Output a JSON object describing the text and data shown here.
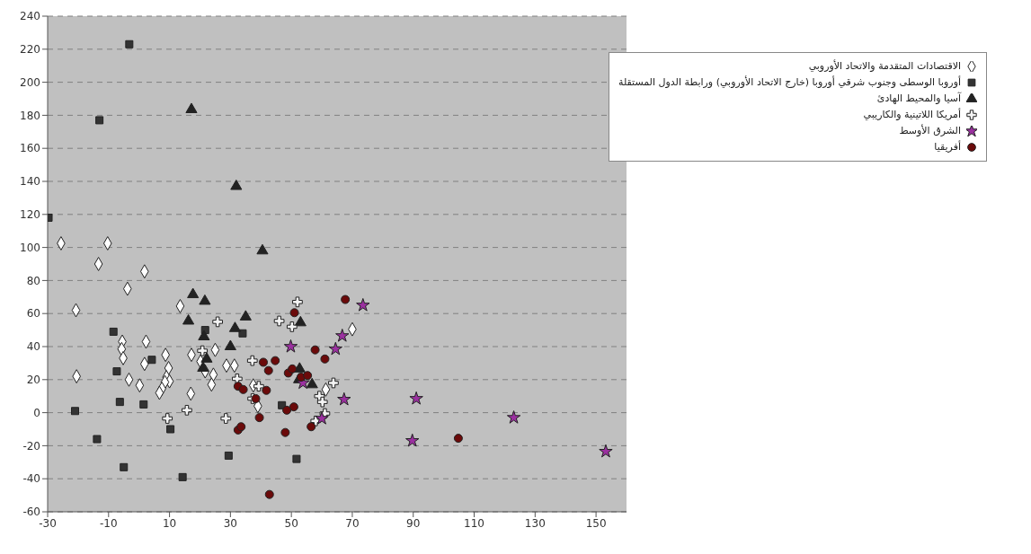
{
  "chart_data": {
    "type": "scatter",
    "xlim": [
      -30,
      160
    ],
    "xticks": [
      -30,
      -10,
      10,
      30,
      50,
      70,
      90,
      110,
      130,
      150
    ],
    "ylim": [
      -60,
      240
    ],
    "yticks": [
      -60,
      -40,
      -20,
      0,
      20,
      40,
      60,
      80,
      100,
      120,
      140,
      160,
      180,
      200,
      220,
      240
    ],
    "grid": "y",
    "legend": "top right",
    "series": [
      {
        "name": "الاقتصادات المتقدمة والاتحاد الأوروبي",
        "color": "#ffffff",
        "marker": "diamond",
        "x": [
          -25.6,
          -10.3,
          -13.3,
          1.8,
          -20.7,
          -3.8,
          -20.5,
          -5.5,
          -5.7,
          -5.2,
          -3.3,
          0.2,
          1.8,
          2.3,
          8.7,
          9.7,
          9,
          10,
          8.5,
          7.5,
          6.7,
          13.5,
          17.2,
          17,
          20.2,
          21.7,
          25,
          24.4,
          23.8,
          28.7,
          31.3,
          70,
          61.3,
          37.5,
          39
        ],
        "values": [
          102.5,
          102.5,
          90,
          85.5,
          62,
          75,
          22,
          43,
          38.5,
          33,
          20,
          16.5,
          29.5,
          43,
          35,
          27,
          21.5,
          19,
          18.5,
          14.5,
          12,
          64.5,
          35,
          11.5,
          31,
          25,
          38,
          23,
          17,
          28.5,
          28.5,
          50.5,
          14,
          16.5,
          4
        ]
      },
      {
        "name": "أوروبا الوسطى وجنوب شرقي أوروبا (خارج الاتحاد الأوروبي) ورابطة الدول المستقلة",
        "color": "#333333",
        "marker": "square",
        "x": [
          -3.2,
          -13,
          -29.7,
          -8.4,
          -7.3,
          -6.3,
          -21,
          -13.8,
          -5,
          1.5,
          4.2,
          10.3,
          14.3,
          21.7,
          29.4,
          34,
          46.9,
          51.7
        ],
        "values": [
          223,
          177,
          118,
          49,
          25,
          6.5,
          1,
          -16,
          -33,
          5,
          32,
          -10,
          -39,
          50,
          -26,
          48,
          4.5,
          -28
        ]
      },
      {
        "name": "آسيا والمحيط الهادئ",
        "color": "#222222",
        "marker": "triangle",
        "x": [
          17.2,
          31.9,
          40.5,
          17.7,
          21.6,
          16.2,
          21.3,
          22.2,
          21,
          31.5,
          30,
          35,
          53,
          52.7,
          52.5,
          56.8
        ],
        "values": [
          183.5,
          137,
          98,
          71.5,
          67.5,
          55.5,
          46,
          32.5,
          27,
          51,
          40,
          58,
          54.5,
          26.5,
          20,
          17
        ]
      },
      {
        "name": "أمريكا اللاتينية والكاريبي",
        "color": "#f4f4f4",
        "marker": "cross",
        "x": [
          25.8,
          20.8,
          15.7,
          9.3,
          28.5,
          32.2,
          52,
          46,
          50.2,
          37.2,
          39.3,
          37.3,
          63.8,
          59.2,
          60.2,
          61,
          58
        ],
        "values": [
          55,
          37.5,
          1.5,
          -3.5,
          -3.5,
          20.5,
          67,
          55.5,
          52,
          31.5,
          16,
          8.5,
          18,
          10,
          6.5,
          -0.5,
          -5
        ]
      },
      {
        "name": "الشرق الأوسط",
        "color": "#9b30a0",
        "marker": "star",
        "x": [
          73.5,
          66.7,
          64.5,
          49.8,
          53.8,
          67.3,
          60,
          91,
          89.7,
          123,
          153.2
        ],
        "values": [
          65,
          46.5,
          38.5,
          40,
          18,
          8,
          -3.5,
          8.5,
          -17,
          -3,
          -23.5
        ]
      },
      {
        "name": "أفريقيا",
        "color": "#6b0a0a",
        "marker": "circle",
        "x": [
          67.7,
          51,
          57.8,
          61,
          40.8,
          44.7,
          42.5,
          49,
          50.3,
          53.2,
          55.3,
          41.8,
          32.5,
          34.2,
          38.3,
          50.8,
          48.5,
          39.5,
          56.5,
          32.5,
          33.5,
          48,
          42.8,
          104.8
        ],
        "values": [
          68.5,
          60.5,
          38,
          32.5,
          30.5,
          31.5,
          25.5,
          24,
          26.5,
          21.5,
          22.5,
          13.5,
          16,
          14,
          8.5,
          3.5,
          1.5,
          -3,
          -8.5,
          -10.5,
          -8.5,
          -12,
          -49.5,
          -15.5
        ]
      }
    ]
  }
}
